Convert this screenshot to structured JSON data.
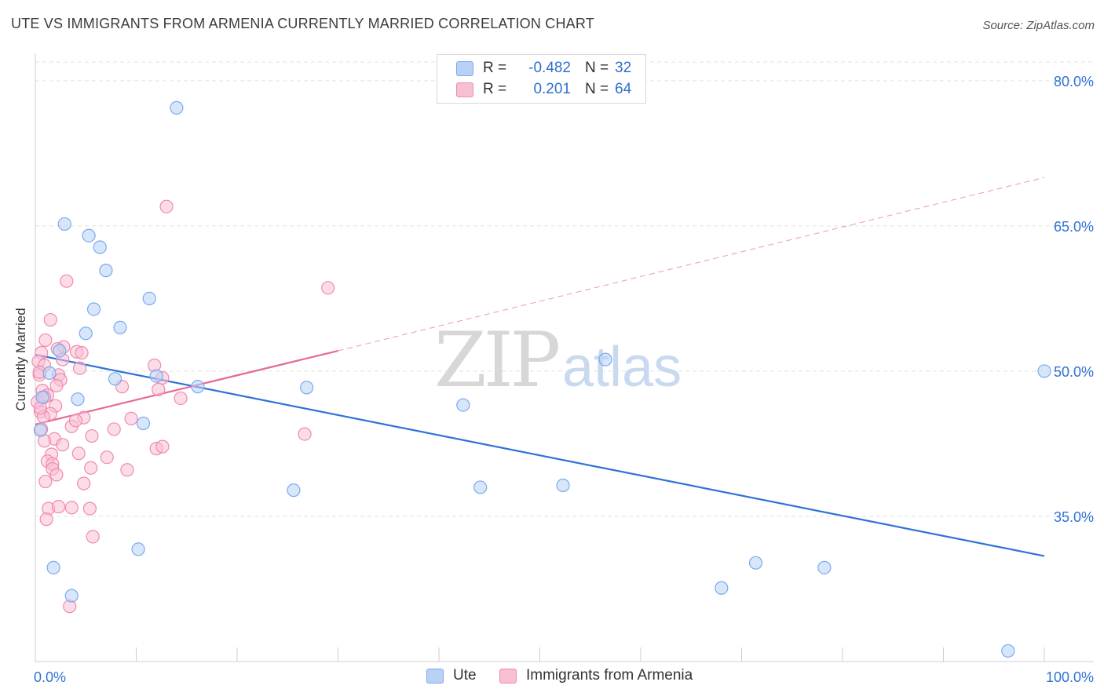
{
  "title": "UTE VS IMMIGRANTS FROM ARMENIA CURRENTLY MARRIED CORRELATION CHART",
  "source": "Source: ZipAtlas.com",
  "watermark": {
    "zip": "ZIP",
    "atlas": "atlas"
  },
  "colors": {
    "ute": "#7aaaf0",
    "ute_fill": "#b8d1f5",
    "ute_line": "#2f72d6",
    "armenia": "#f08ab0",
    "armenia_fill": "#f7bfd3",
    "armenia_line": "#e56b95"
  },
  "legend": {
    "rows": [
      {
        "r_label": "R =",
        "r_value": "-0.482",
        "n_label": "N =",
        "n_value": "32"
      },
      {
        "r_label": "R =",
        "r_value": "0.201",
        "n_label": "N =",
        "n_value": "64"
      }
    ]
  },
  "bottom_legend": {
    "ute": "Ute",
    "armenia": "Immigrants from Armenia"
  },
  "chart_data": {
    "type": "scatter",
    "title": "UTE VS IMMIGRANTS FROM ARMENIA CURRENTLY MARRIED CORRELATION CHART",
    "xlabel": "",
    "ylabel": "Currently Married",
    "xlim": [
      0,
      100
    ],
    "ylim": [
      20,
      82.5
    ],
    "x_tick_labels": [
      "0.0%",
      "100.0%"
    ],
    "y_ticks": [
      35,
      50,
      65,
      80
    ],
    "y_tick_labels": [
      "35.0%",
      "50.0%",
      "65.0%",
      "80.0%"
    ],
    "series": [
      {
        "name": "Ute",
        "r": -0.482,
        "n": 32,
        "trend": {
          "x": [
            0,
            100
          ],
          "y": [
            51.7,
            30.9
          ],
          "style": "solid"
        },
        "points": [
          {
            "x": 14.0,
            "y": 77.2
          },
          {
            "x": 2.9,
            "y": 65.2
          },
          {
            "x": 5.3,
            "y": 64.0
          },
          {
            "x": 6.4,
            "y": 62.8
          },
          {
            "x": 7.0,
            "y": 60.4
          },
          {
            "x": 11.3,
            "y": 57.5
          },
          {
            "x": 5.8,
            "y": 56.4
          },
          {
            "x": 8.4,
            "y": 54.5
          },
          {
            "x": 5.0,
            "y": 53.9
          },
          {
            "x": 2.4,
            "y": 52.1
          },
          {
            "x": 1.4,
            "y": 49.8
          },
          {
            "x": 7.9,
            "y": 49.2
          },
          {
            "x": 12.0,
            "y": 49.5
          },
          {
            "x": 16.1,
            "y": 48.4
          },
          {
            "x": 26.9,
            "y": 48.3
          },
          {
            "x": 0.7,
            "y": 47.3
          },
          {
            "x": 4.2,
            "y": 47.1
          },
          {
            "x": 42.4,
            "y": 46.5
          },
          {
            "x": 10.7,
            "y": 44.6
          },
          {
            "x": 0.5,
            "y": 43.9
          },
          {
            "x": 56.5,
            "y": 51.2
          },
          {
            "x": 100.0,
            "y": 50.0
          },
          {
            "x": 25.6,
            "y": 37.7
          },
          {
            "x": 44.1,
            "y": 38.0
          },
          {
            "x": 52.3,
            "y": 38.2
          },
          {
            "x": 10.2,
            "y": 31.6
          },
          {
            "x": 1.8,
            "y": 29.7
          },
          {
            "x": 71.4,
            "y": 30.2
          },
          {
            "x": 78.2,
            "y": 29.7
          },
          {
            "x": 68.0,
            "y": 27.6
          },
          {
            "x": 3.6,
            "y": 26.8
          },
          {
            "x": 96.4,
            "y": 21.1
          }
        ]
      },
      {
        "name": "Immigrants from Armenia",
        "r": 0.201,
        "n": 64,
        "trend": {
          "x": [
            0,
            30,
            100
          ],
          "y": [
            44.5,
            52.1,
            70.0
          ],
          "style": "solid_to_30_then_dashed"
        },
        "points": [
          {
            "x": 13.0,
            "y": 67.0
          },
          {
            "x": 3.1,
            "y": 59.3
          },
          {
            "x": 29.0,
            "y": 58.6
          },
          {
            "x": 1.5,
            "y": 55.3
          },
          {
            "x": 1.0,
            "y": 53.2
          },
          {
            "x": 2.8,
            "y": 52.5
          },
          {
            "x": 0.6,
            "y": 51.9
          },
          {
            "x": 4.1,
            "y": 52.0
          },
          {
            "x": 4.6,
            "y": 51.9
          },
          {
            "x": 2.2,
            "y": 52.3
          },
          {
            "x": 0.3,
            "y": 51.0
          },
          {
            "x": 2.7,
            "y": 51.2
          },
          {
            "x": 0.9,
            "y": 50.6
          },
          {
            "x": 11.8,
            "y": 50.6
          },
          {
            "x": 4.4,
            "y": 50.3
          },
          {
            "x": 0.4,
            "y": 49.6
          },
          {
            "x": 2.3,
            "y": 49.6
          },
          {
            "x": 2.5,
            "y": 49.1
          },
          {
            "x": 12.6,
            "y": 49.3
          },
          {
            "x": 2.1,
            "y": 48.5
          },
          {
            "x": 8.6,
            "y": 48.4
          },
          {
            "x": 0.7,
            "y": 48.0
          },
          {
            "x": 12.2,
            "y": 48.1
          },
          {
            "x": 1.2,
            "y": 47.5
          },
          {
            "x": 14.4,
            "y": 47.2
          },
          {
            "x": 0.2,
            "y": 46.8
          },
          {
            "x": 2.0,
            "y": 46.4
          },
          {
            "x": 0.5,
            "y": 45.8
          },
          {
            "x": 1.5,
            "y": 45.6
          },
          {
            "x": 0.8,
            "y": 45.3
          },
          {
            "x": 4.8,
            "y": 45.2
          },
          {
            "x": 9.5,
            "y": 45.1
          },
          {
            "x": 3.6,
            "y": 44.3
          },
          {
            "x": 0.6,
            "y": 44.0
          },
          {
            "x": 5.6,
            "y": 43.3
          },
          {
            "x": 26.7,
            "y": 43.5
          },
          {
            "x": 1.9,
            "y": 43.0
          },
          {
            "x": 0.9,
            "y": 42.8
          },
          {
            "x": 2.7,
            "y": 42.4
          },
          {
            "x": 12.0,
            "y": 42.0
          },
          {
            "x": 12.6,
            "y": 42.2
          },
          {
            "x": 4.3,
            "y": 41.5
          },
          {
            "x": 1.6,
            "y": 41.4
          },
          {
            "x": 7.1,
            "y": 41.1
          },
          {
            "x": 1.2,
            "y": 40.7
          },
          {
            "x": 1.7,
            "y": 40.4
          },
          {
            "x": 1.7,
            "y": 39.9
          },
          {
            "x": 5.5,
            "y": 40.0
          },
          {
            "x": 9.1,
            "y": 39.8
          },
          {
            "x": 2.1,
            "y": 39.3
          },
          {
            "x": 1.0,
            "y": 38.6
          },
          {
            "x": 4.8,
            "y": 38.4
          },
          {
            "x": 1.3,
            "y": 35.8
          },
          {
            "x": 2.3,
            "y": 36.0
          },
          {
            "x": 3.6,
            "y": 35.9
          },
          {
            "x": 5.4,
            "y": 35.8
          },
          {
            "x": 1.1,
            "y": 34.7
          },
          {
            "x": 5.7,
            "y": 32.9
          },
          {
            "x": 0.4,
            "y": 49.9
          },
          {
            "x": 0.9,
            "y": 47.3
          },
          {
            "x": 0.5,
            "y": 46.2
          },
          {
            "x": 7.8,
            "y": 44.0
          },
          {
            "x": 4.0,
            "y": 44.9
          },
          {
            "x": 3.4,
            "y": 25.7
          }
        ]
      }
    ]
  }
}
